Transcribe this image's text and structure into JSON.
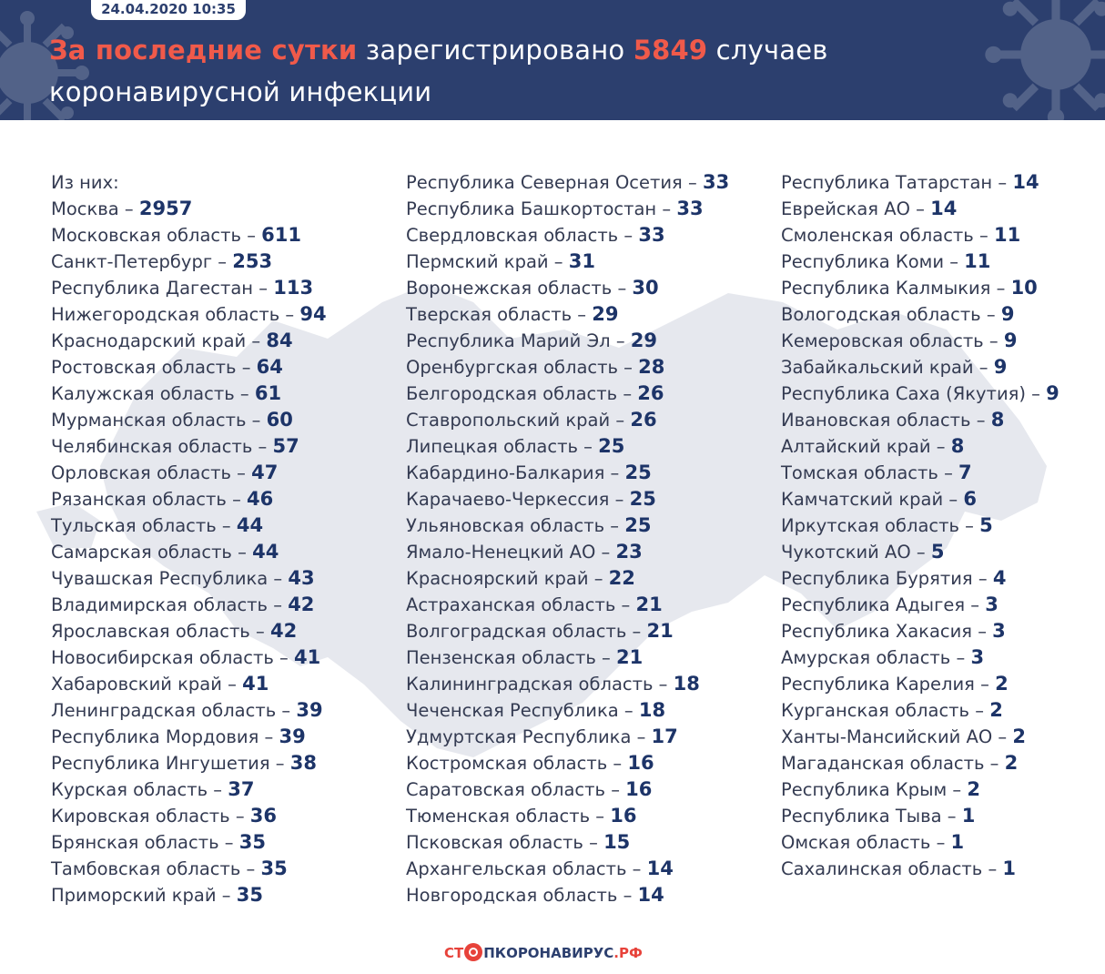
{
  "header": {
    "date": "24.04.2020 10:35",
    "headline_part1": "За последние сутки",
    "headline_part2": " зарегистрировано ",
    "headline_count": "5849",
    "headline_part3": " случаев",
    "headline_line2": "коронавирусной инфекции"
  },
  "list": {
    "intro": "Из них:",
    "col1": [
      {
        "region": "Москва",
        "count": "2957"
      },
      {
        "region": "Московская область",
        "count": "611"
      },
      {
        "region": "Санкт-Петербург",
        "count": "253"
      },
      {
        "region": "Республика Дагестан",
        "count": "113"
      },
      {
        "region": "Нижегородская область",
        "count": "94"
      },
      {
        "region": "Краснодарский край",
        "count": "84"
      },
      {
        "region": "Ростовская область",
        "count": "64"
      },
      {
        "region": "Калужская область",
        "count": "61"
      },
      {
        "region": "Мурманская область",
        "count": "60"
      },
      {
        "region": "Челябинская область",
        "count": "57"
      },
      {
        "region": "Орловская область",
        "count": "47"
      },
      {
        "region": "Рязанская область",
        "count": "46"
      },
      {
        "region": "Тульская область",
        "count": "44"
      },
      {
        "region": "Самарская область",
        "count": "44"
      },
      {
        "region": "Чувашская Республика",
        "count": "43"
      },
      {
        "region": "Владимирская область",
        "count": "42"
      },
      {
        "region": "Ярославская область",
        "count": "42"
      },
      {
        "region": "Новосибирская область",
        "count": "41"
      },
      {
        "region": "Хабаровский край",
        "count": "41"
      },
      {
        "region": "Ленинградская область",
        "count": "39"
      },
      {
        "region": "Республика Мордовия",
        "count": "39"
      },
      {
        "region": "Республика Ингушетия",
        "count": "38"
      },
      {
        "region": "Курская область",
        "count": "37"
      },
      {
        "region": "Кировская область",
        "count": "36"
      },
      {
        "region": "Брянская область",
        "count": "35"
      },
      {
        "region": "Тамбовская область",
        "count": "35"
      },
      {
        "region": "Приморский край",
        "count": "35"
      }
    ],
    "col2": [
      {
        "region": "Республика Северная Осетия",
        "count": "33"
      },
      {
        "region": "Республика Башкортостан",
        "count": "33"
      },
      {
        "region": "Свердловская область",
        "count": "33"
      },
      {
        "region": "Пермский край",
        "count": "31"
      },
      {
        "region": "Воронежская область",
        "count": "30"
      },
      {
        "region": "Тверская область",
        "count": "29"
      },
      {
        "region": "Республика Марий Эл",
        "count": "29"
      },
      {
        "region": "Оренбургская область",
        "count": "28"
      },
      {
        "region": "Белгородская область",
        "count": "26"
      },
      {
        "region": "Ставропольский край",
        "count": "26"
      },
      {
        "region": "Липецкая область",
        "count": "25"
      },
      {
        "region": "Кабардино-Балкария",
        "count": "25"
      },
      {
        "region": "Карачаево-Черкессия",
        "count": "25"
      },
      {
        "region": "Ульяновская область",
        "count": "25"
      },
      {
        "region": "Ямало-Ненецкий АО",
        "count": "23"
      },
      {
        "region": "Красноярский край",
        "count": "22"
      },
      {
        "region": "Астраханская область",
        "count": "21"
      },
      {
        "region": "Волгоградская область",
        "count": "21"
      },
      {
        "region": "Пензенская область",
        "count": "21"
      },
      {
        "region": "Калининградская область",
        "count": "18"
      },
      {
        "region": "Чеченская Республика",
        "count": "18"
      },
      {
        "region": "Удмуртская Республика",
        "count": "17"
      },
      {
        "region": "Костромская область",
        "count": "16"
      },
      {
        "region": "Саратовская область",
        "count": "16"
      },
      {
        "region": "Тюменская область",
        "count": "16"
      },
      {
        "region": "Псковская область",
        "count": "15"
      },
      {
        "region": "Архангельская область",
        "count": "14"
      },
      {
        "region": "Новгородская область",
        "count": "14"
      }
    ],
    "col3": [
      {
        "region": "Республика Татарстан",
        "count": "14"
      },
      {
        "region": "Еврейская АО",
        "count": "14"
      },
      {
        "region": "Смоленская область",
        "count": "11"
      },
      {
        "region": "Республика Коми",
        "count": "11"
      },
      {
        "region": "Республика Калмыкия",
        "count": "10"
      },
      {
        "region": "Вологодская область",
        "count": "9"
      },
      {
        "region": "Кемеровская область",
        "count": "9"
      },
      {
        "region": "Забайкальский край",
        "count": "9"
      },
      {
        "region": "Республика Саха (Якутия)",
        "count": "9"
      },
      {
        "region": "Ивановская область",
        "count": "8"
      },
      {
        "region": "Алтайский край",
        "count": "8"
      },
      {
        "region": "Томская область",
        "count": "7"
      },
      {
        "region": "Камчатский край",
        "count": "6"
      },
      {
        "region": "Иркутская область",
        "count": "5"
      },
      {
        "region": "Чукотский АО",
        "count": "5"
      },
      {
        "region": "Республика Бурятия",
        "count": "4"
      },
      {
        "region": "Республика Адыгея",
        "count": "3"
      },
      {
        "region": "Республика Хакасия",
        "count": "3"
      },
      {
        "region": "Амурская область",
        "count": "3"
      },
      {
        "region": "Республика Карелия",
        "count": "2"
      },
      {
        "region": "Курганская область",
        "count": "2"
      },
      {
        "region": "Ханты-Мансийский АО",
        "count": "2"
      },
      {
        "region": "Магаданская область",
        "count": "2"
      },
      {
        "region": "Республика Крым",
        "count": "2"
      },
      {
        "region": "Республика Тыва",
        "count": "1"
      },
      {
        "region": "Омская область",
        "count": "1"
      },
      {
        "region": "Сахалинская область",
        "count": "1"
      }
    ]
  },
  "footer": {
    "logo_part1": "СТ",
    "logo_part2": "ПКОРОНАВИРУС",
    "logo_part3": ".РФ"
  },
  "colors": {
    "header_bg": "#2c3f6e",
    "accent_red": "#f05a4a",
    "number_blue": "#1d3468",
    "map_grey": "#e6e8ee"
  },
  "icons": [
    "virus-icon",
    "russia-map-background",
    "stop-logo-icon"
  ]
}
